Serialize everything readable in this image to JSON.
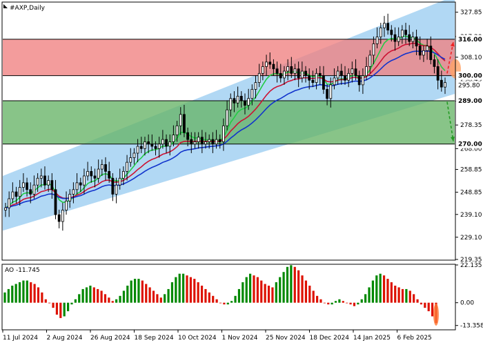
{
  "chart_data": [
    {
      "type": "candlestick",
      "title": "#AXP,Daily",
      "ylim": [
        219.35,
        332.0
      ],
      "y_ticks": [
        327.85,
        317.2,
        308.1,
        298.45,
        288.8,
        278.35,
        268.0,
        258.85,
        248.85,
        239.1,
        229.1,
        219.35
      ],
      "x_tick_labels": [
        "11 Jul 2024",
        "2 Aug 2024",
        "26 Aug 2024",
        "18 Sep 2024",
        "10 Oct 2024",
        "1 Nov 2024",
        "25 Nov 2024",
        "18 Dec 2024",
        "14 Jan 2025",
        "6 Feb 2025"
      ],
      "levels": [
        {
          "value": 316.0,
          "label": "316.00",
          "color": "#000000"
        },
        {
          "value": 300.0,
          "label": "300.00",
          "color": "#000000"
        },
        {
          "value": 289.0,
          "label": "289.00",
          "color": "#000000"
        },
        {
          "value": 270.0,
          "label": "270.00",
          "color": "#000000"
        }
      ],
      "price_marker": {
        "value": 295.8,
        "label": "295.80"
      },
      "zones": [
        {
          "name": "resistance",
          "from": 300.0,
          "to": 316.0,
          "color": "#f08080"
        },
        {
          "name": "support",
          "from": 270.0,
          "to": 289.0,
          "color": "#66b366"
        }
      ],
      "channel": {
        "color": "#90c8f0",
        "lower_start": 232,
        "lower_end": 292,
        "upper_start": 256,
        "upper_end": 335
      },
      "closes": [
        242,
        246,
        249,
        247,
        251,
        253,
        250,
        248,
        252,
        255,
        256,
        252,
        254,
        250,
        239,
        236,
        241,
        245,
        248,
        250,
        253,
        252,
        256,
        258,
        256,
        255,
        259,
        261,
        258,
        255,
        248,
        252,
        255,
        258,
        262,
        264,
        266,
        269,
        268,
        271,
        270,
        269,
        268,
        270,
        272,
        269,
        271,
        274,
        278,
        283,
        275,
        272,
        270,
        271,
        273,
        270,
        271,
        272,
        270,
        272,
        271,
        278,
        285,
        290,
        288,
        291,
        289,
        287,
        290,
        294,
        297,
        301,
        304,
        306,
        305,
        303,
        301,
        299,
        302,
        304,
        301,
        303,
        299,
        302,
        300,
        298,
        297,
        301,
        300,
        294,
        290,
        296,
        299,
        302,
        300,
        298,
        301,
        303,
        300,
        296,
        300,
        304,
        309,
        314,
        317,
        321,
        323,
        320,
        318,
        315,
        317,
        320,
        318,
        315,
        317,
        313,
        309,
        311,
        313,
        307,
        304,
        298,
        295,
        297
      ],
      "indicator_lines": [
        {
          "name": "green",
          "color": "#22cc44"
        },
        {
          "name": "red",
          "color": "#cc1133"
        },
        {
          "name": "blue",
          "color": "#1133cc"
        }
      ],
      "forecast_arrows": [
        {
          "direction": "up",
          "color": "#ee2222",
          "target": 316.0
        },
        {
          "direction": "down",
          "color": "#229922",
          "target": 270.0
        }
      ]
    },
    {
      "type": "bar",
      "title": "AO -11.745",
      "ylim": [
        -15.5,
        22.135
      ],
      "y_ticks": [
        22.135,
        0.0,
        -13.358
      ],
      "y_tick_labels": [
        "22.135",
        "0.00",
        "-13.358"
      ],
      "up_color": "#008800",
      "down_color": "#dd1100",
      "values": [
        6,
        8,
        10,
        11,
        12,
        13,
        13,
        12,
        11,
        9,
        6,
        2,
        0,
        -3,
        -7,
        -9,
        -8,
        -5,
        -1,
        2,
        5,
        8,
        9,
        10,
        9,
        8,
        7,
        5,
        3,
        1,
        2,
        4,
        7,
        10,
        13,
        14,
        14,
        13,
        11,
        9,
        7,
        5,
        3,
        5,
        8,
        12,
        15,
        17,
        17,
        16,
        15,
        14,
        12,
        10,
        8,
        6,
        4,
        2,
        0,
        -1,
        -1,
        1,
        4,
        8,
        12,
        15,
        17,
        16,
        15,
        13,
        11,
        10,
        9,
        12,
        15,
        18,
        21,
        22,
        21,
        19,
        16,
        13,
        10,
        7,
        4,
        2,
        0,
        -1,
        -1,
        1,
        2,
        1,
        0,
        -1,
        -2,
        -1,
        2,
        5,
        9,
        13,
        16,
        17,
        16,
        14,
        12,
        10,
        9,
        8,
        8,
        7,
        5,
        2,
        -1,
        -3,
        -5,
        -8,
        -12
      ]
    }
  ]
}
